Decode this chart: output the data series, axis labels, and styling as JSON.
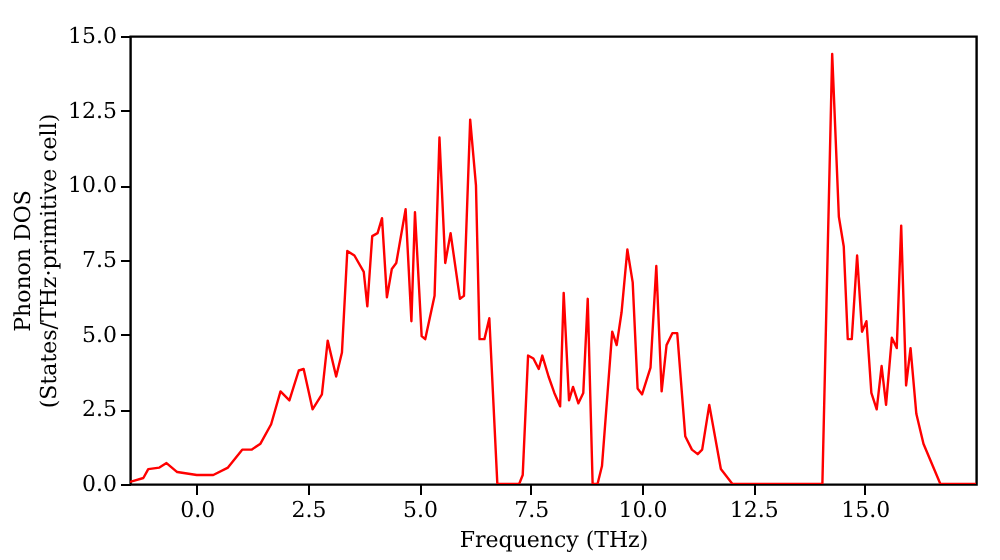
{
  "chart_data": {
    "type": "line",
    "xlabel": "Frequency (THz)",
    "ylabel": "Phonon DOS\n(States/THz·primitive cell)",
    "grid": false,
    "line_style": "solid",
    "marker": "none",
    "xlim": [
      -1.5,
      17.5
    ],
    "ylim": [
      0,
      15
    ],
    "xticks": [
      {
        "value": 0,
        "label": "0.0"
      },
      {
        "value": 2.5,
        "label": "2.5"
      },
      {
        "value": 5,
        "label": "5.0"
      },
      {
        "value": 7.5,
        "label": "7.5"
      },
      {
        "value": 10,
        "label": "10.0"
      },
      {
        "value": 12.5,
        "label": "12.5"
      },
      {
        "value": 15,
        "label": "15.0"
      }
    ],
    "yticks": [
      {
        "value": 0,
        "label": "0.0"
      },
      {
        "value": 2.5,
        "label": "2.5"
      },
      {
        "value": 5,
        "label": "5.0"
      },
      {
        "value": 7.5,
        "label": "7.5"
      },
      {
        "value": 10,
        "label": "10.0"
      },
      {
        "value": 12.5,
        "label": "12.5"
      },
      {
        "value": 15,
        "label": "15.0"
      }
    ],
    "series": [
      {
        "color": "#ff0000",
        "x": [
          -1.5,
          -1.2,
          -1.09,
          -0.84,
          -0.68,
          -0.44,
          0,
          0.37,
          0.7,
          1.02,
          1.23,
          1.43,
          1.67,
          1.88,
          2.08,
          2.29,
          2.4,
          2.6,
          2.81,
          2.94,
          3.13,
          3.26,
          3.38,
          3.54,
          3.75,
          3.83,
          3.94,
          4.06,
          4.16,
          4.27,
          4.38,
          4.48,
          4.69,
          4.82,
          4.9,
          5.05,
          5.13,
          5.34,
          5.45,
          5.58,
          5.7,
          5.91,
          6.0,
          6.14,
          6.27,
          6.35,
          6.46,
          6.57,
          6.75,
          7.24,
          7.32,
          7.44,
          7.56,
          7.68,
          7.76,
          7.9,
          8.03,
          8.16,
          8.24,
          8.36,
          8.45,
          8.57,
          8.68,
          8.78,
          8.89,
          9.0,
          9.1,
          9.33,
          9.43,
          9.54,
          9.67,
          9.79,
          9.9,
          10.0,
          10.19,
          10.32,
          10.44,
          10.55,
          10.68,
          10.79,
          10.97,
          11.12,
          11.25,
          11.35,
          11.51,
          11.77,
          12.03,
          14.05,
          14.27,
          14.42,
          14.53,
          14.62,
          14.71,
          14.83,
          14.94,
          15.04,
          15.15,
          15.27,
          15.38,
          15.48,
          15.61,
          15.72,
          15.82,
          15.93,
          16.03,
          16.16,
          16.32,
          16.53,
          16.7,
          17.5
        ],
        "values": [
          0.07,
          0.2,
          0.5,
          0.55,
          0.7,
          0.4,
          0.3,
          0.3,
          0.55,
          1.15,
          1.15,
          1.35,
          2.0,
          3.1,
          2.8,
          3.8,
          3.85,
          2.5,
          3.0,
          4.8,
          3.6,
          4.4,
          7.8,
          7.65,
          7.1,
          5.95,
          8.3,
          8.4,
          8.9,
          6.25,
          7.2,
          7.4,
          9.2,
          5.45,
          9.1,
          4.95,
          4.85,
          6.3,
          11.6,
          7.4,
          8.4,
          6.2,
          6.3,
          12.2,
          10.0,
          4.85,
          4.85,
          5.55,
          0,
          0,
          0.3,
          4.3,
          4.2,
          3.85,
          4.3,
          3.6,
          3.05,
          2.6,
          6.4,
          2.8,
          3.25,
          2.7,
          3.05,
          6.2,
          0,
          0,
          0.6,
          5.1,
          4.65,
          5.75,
          7.85,
          6.75,
          3.2,
          3.0,
          3.9,
          7.3,
          3.1,
          4.65,
          5.05,
          5.05,
          1.6,
          1.15,
          1.0,
          1.15,
          2.65,
          0.5,
          0,
          0,
          14.4,
          8.95,
          7.95,
          4.85,
          4.85,
          7.65,
          5.1,
          5.45,
          3.05,
          2.5,
          3.95,
          2.65,
          4.9,
          4.55,
          8.65,
          3.3,
          4.55,
          2.35,
          1.35,
          0.6,
          0,
          0
        ]
      }
    ]
  }
}
